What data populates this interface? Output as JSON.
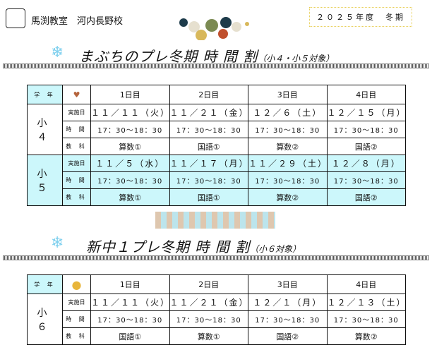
{
  "header": {
    "school": "馬渕教室　河内長野校",
    "term": "２０２５年度　冬期"
  },
  "section1": {
    "title": "まぶちのプレ冬期 時 間 割",
    "subtitle": "（小４・小５対象）"
  },
  "section2": {
    "title": "新中１プレ冬期 時 間 割",
    "subtitle": "（小６対象）"
  },
  "labels": {
    "grade": "学 年",
    "date": "実施日",
    "time": "時 間",
    "subject": "教 科"
  },
  "days": [
    "1日目",
    "2日目",
    "3日目",
    "4日目"
  ],
  "table1": [
    {
      "grade": "小　４",
      "dates": [
        "１１／１１（火）",
        "１１／２１（金）",
        "１２／６（土）",
        "１２／１５（月）"
      ],
      "times": [
        "17：30～18：30",
        "17：30～18：30",
        "17：30～18：30",
        "17：30～18：30"
      ],
      "subjects": [
        "算数①",
        "国語①",
        "算数②",
        "国語②"
      ]
    },
    {
      "grade": "小　５",
      "dates": [
        "１１／５（水）",
        "１１／１７（月）",
        "１１／２９（土）",
        "１２／８（月）"
      ],
      "times": [
        "17：30～18：30",
        "17：30～18：30",
        "17：30～18：30",
        "17：30～18：30"
      ],
      "subjects": [
        "算数①",
        "国語①",
        "算数②",
        "国語②"
      ]
    }
  ],
  "table2": [
    {
      "grade": "小　６",
      "dates": [
        "１１／１１（火）",
        "１１／２１（金）",
        "１２／１（月）",
        "１２／１３（土）"
      ],
      "times": [
        "17：30～18：30",
        "17：30～18：30",
        "17：30～18：30",
        "17：30～18：30"
      ],
      "subjects": [
        "国語①",
        "算数①",
        "国語②",
        "算数②"
      ]
    }
  ],
  "colors": {
    "highlight": "#ccf7fb",
    "term_border": "#e8cf57",
    "snowflake": "#7fd0ee"
  }
}
